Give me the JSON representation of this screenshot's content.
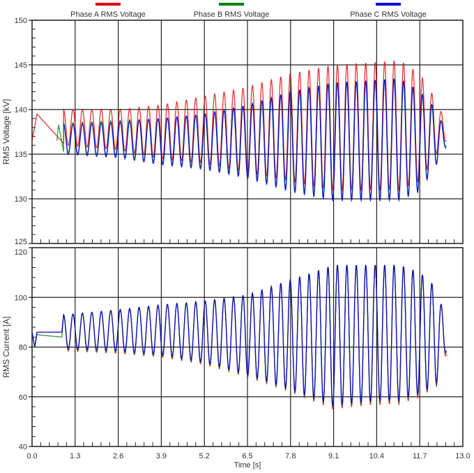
{
  "chart_data": [
    {
      "type": "line",
      "ylabel": "RMS Voltage [kV]",
      "ylim": [
        125,
        150
      ],
      "yticks": [
        125,
        130,
        135,
        140,
        145,
        150
      ],
      "xlim": [
        0,
        13
      ],
      "xticks": [
        "0.0",
        "1.3",
        "2.6",
        "3.9",
        "5.2",
        "6.5",
        "7.8",
        "9.1",
        "10.4",
        "11.7",
        "13.0"
      ],
      "grid": true,
      "legend_placement": "top",
      "oscillation_period_s": 0.285,
      "series": [
        {
          "name": "Phase A RMS Voltage",
          "color": "#e00000",
          "initial": [
            [
              0,
              136.5
            ],
            [
              0.15,
              139.5
            ],
            [
              0.95,
              136.2
            ]
          ],
          "envelope": [
            [
              0.95,
              140,
              136
            ],
            [
              2.6,
              140,
              135.5
            ],
            [
              3.9,
              140.5,
              134.5
            ],
            [
              5.2,
              141.5,
              134
            ],
            [
              6.5,
              142.5,
              133
            ],
            [
              7.8,
              144,
              132
            ],
            [
              9.1,
              145,
              131
            ],
            [
              10.4,
              145.3,
              131
            ],
            [
              11.1,
              145.5,
              131
            ],
            [
              11.7,
              144,
              132
            ],
            [
              12.2,
              141,
              135
            ],
            [
              12.5,
              138.5,
              136.5
            ]
          ]
        },
        {
          "name": "Phase B RMS Voltage",
          "color": "#008000",
          "initial": [
            [
              0.75,
              136.5
            ],
            [
              0.8,
              138.3
            ],
            [
              0.95,
              135.3
            ]
          ],
          "envelope": [
            [
              0.95,
              138.5,
              135.2
            ],
            [
              2.6,
              138.8,
              134.8
            ],
            [
              3.9,
              139,
              134
            ],
            [
              5.2,
              139.5,
              133.5
            ],
            [
              6.5,
              140.5,
              132.5
            ],
            [
              7.8,
              142,
              131
            ],
            [
              9.1,
              143,
              130
            ],
            [
              10.4,
              143.3,
              130
            ],
            [
              11.1,
              143.5,
              130
            ],
            [
              11.7,
              142,
              131
            ],
            [
              12.2,
              140,
              134
            ],
            [
              12.5,
              137.5,
              136
            ]
          ]
        },
        {
          "name": "Phase C RMS Voltage",
          "color": "#0000e0",
          "initial": [],
          "envelope": [
            [
              0.95,
              138.3,
              135
            ],
            [
              2.6,
              138.6,
              134.6
            ],
            [
              3.9,
              139,
              133.8
            ],
            [
              5.2,
              139.5,
              133.3
            ],
            [
              6.5,
              140.5,
              132.3
            ],
            [
              7.8,
              142,
              130.8
            ],
            [
              9.1,
              143,
              129.8
            ],
            [
              10.4,
              143.3,
              129.8
            ],
            [
              11.1,
              143.5,
              129.8
            ],
            [
              11.7,
              142,
              130.8
            ],
            [
              12.2,
              140,
              133.8
            ],
            [
              12.5,
              137.3,
              135.8
            ]
          ]
        }
      ]
    },
    {
      "type": "line",
      "xlabel": "Time [s]",
      "ylabel": "RMS Current [A]",
      "ylim": [
        40,
        120
      ],
      "yticks": [
        40,
        60,
        80,
        100,
        120
      ],
      "xlim": [
        0,
        13
      ],
      "xticks": [
        "0.0",
        "1.3",
        "2.6",
        "3.9",
        "5.2",
        "6.5",
        "7.8",
        "9.1",
        "10.4",
        "11.7",
        "13.0"
      ],
      "grid": true,
      "oscillation_period_s": 0.285,
      "series": [
        {
          "color": "#e00000",
          "initial": [
            [
              0,
              86
            ],
            [
              0.08,
              80
            ],
            [
              0.15,
              86
            ],
            [
              0.9,
              86
            ]
          ],
          "envelope": [
            [
              0.95,
              93,
              78.5
            ],
            [
              2.6,
              95,
              77.5
            ],
            [
              3.9,
              97,
              76
            ],
            [
              5.2,
              98.5,
              73
            ],
            [
              6.5,
              101,
              68
            ],
            [
              7.8,
              107,
              62
            ],
            [
              9.1,
              113,
              55
            ],
            [
              10.4,
              113,
              57
            ],
            [
              11.1,
              113,
              57
            ],
            [
              11.7,
              110,
              60
            ],
            [
              12.2,
              104,
              64
            ],
            [
              12.5,
              90,
              77
            ]
          ]
        },
        {
          "color": "#008000",
          "initial": [
            [
              0,
              86
            ],
            [
              0.08,
              80
            ],
            [
              0.15,
              85
            ],
            [
              0.9,
              84
            ]
          ],
          "envelope": [
            [
              0.95,
              93,
              79
            ],
            [
              2.6,
              95,
              78
            ],
            [
              3.9,
              97,
              76.5
            ],
            [
              5.2,
              98.5,
              73.5
            ],
            [
              6.5,
              101,
              68.5
            ],
            [
              7.8,
              107,
              62.5
            ],
            [
              9.1,
              113,
              56
            ],
            [
              10.4,
              113,
              58
            ],
            [
              11.1,
              113,
              58
            ],
            [
              11.7,
              110,
              61
            ],
            [
              12.2,
              104,
              65
            ],
            [
              12.5,
              90,
              78
            ]
          ]
        },
        {
          "color": "#0000e0",
          "initial": [
            [
              0,
              86
            ],
            [
              0.08,
              80
            ],
            [
              0.15,
              86
            ],
            [
              0.9,
              86
            ]
          ],
          "envelope": [
            [
              0.95,
              93,
              79.5
            ],
            [
              2.6,
              95,
              78.5
            ],
            [
              3.9,
              97,
              77
            ],
            [
              5.2,
              98.5,
              74
            ],
            [
              6.5,
              101,
              69
            ],
            [
              7.8,
              107,
              63
            ],
            [
              9.1,
              113,
              56.5
            ],
            [
              10.4,
              113,
              58.5
            ],
            [
              11.1,
              113,
              58.5
            ],
            [
              11.7,
              110,
              61.5
            ],
            [
              12.2,
              104,
              65.5
            ],
            [
              12.5,
              90,
              78.5
            ]
          ]
        }
      ]
    }
  ]
}
